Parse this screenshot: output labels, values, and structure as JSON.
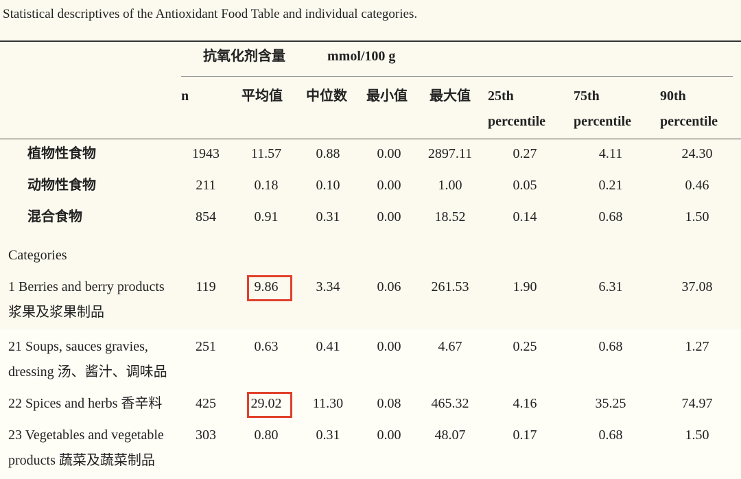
{
  "caption": "Statistical descriptives of the Antioxidant Food Table and individual categories.",
  "header": {
    "group": "抗氧化剂含量",
    "unit": "mmol/100 g",
    "columns": [
      "n",
      "平均值",
      "中位数",
      "最小值",
      "最大值",
      "25th percentile",
      "75th percentile",
      "90th percentile"
    ]
  },
  "rows": [
    {
      "label": "植物性食物",
      "values": [
        "1943",
        "11.57",
        "0.88",
        "0.00",
        "2897.11",
        "0.27",
        "4.11",
        "24.30"
      ]
    },
    {
      "label": "动物性食物",
      "values": [
        "211",
        "0.18",
        "0.10",
        "0.00",
        "1.00",
        "0.05",
        "0.21",
        "0.46"
      ]
    },
    {
      "label": "混合食物",
      "values": [
        "854",
        "0.91",
        "0.31",
        "0.00",
        "18.52",
        "0.14",
        "0.68",
        "1.50"
      ]
    }
  ],
  "section": "Categories",
  "category_rows": [
    {
      "label": "1 Berries and berry products 浆果及浆果制品",
      "values": [
        "119",
        "9.86",
        "3.34",
        "0.06",
        "261.53",
        "1.90",
        "6.31",
        "37.08"
      ],
      "highlight": 1
    },
    {
      "label": "21 Soups, sauces gravies, dressing 汤、酱汁、调味品",
      "values": [
        "251",
        "0.63",
        "0.41",
        "0.00",
        "4.67",
        "0.25",
        "0.68",
        "1.27"
      ]
    },
    {
      "label": "22 Spices and herbs 香辛料",
      "values": [
        "425",
        "29.02",
        "11.30",
        "0.08",
        "465.32",
        "4.16",
        "35.25",
        "74.97"
      ],
      "highlight": 1
    },
    {
      "label": "23 Vegetables and vegetable products 蔬菜及蔬菜制品",
      "values": [
        "303",
        "0.80",
        "0.31",
        "0.00",
        "48.07",
        "0.17",
        "0.68",
        "1.50"
      ]
    }
  ]
}
